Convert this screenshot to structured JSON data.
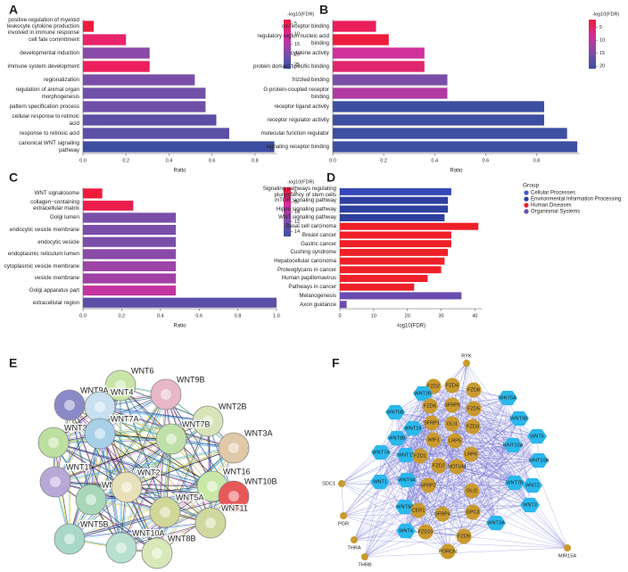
{
  "chart_data": [
    {
      "panel": "A",
      "type": "bar",
      "orientation": "horizontal",
      "categories": [
        "positive regulation of myeloid leukocyte cytokine production involved in immune response",
        "cell fate commitment",
        "developmental induction",
        "immune system development",
        "regionalization",
        "regulation of animal organ morphogenesis",
        "pattern specification process",
        "cellular response to retinoic acid",
        "response to retinoic acid",
        "canonical WNT signaling pathway"
      ],
      "values": [
        0.05,
        0.2,
        0.31,
        0.31,
        0.52,
        0.57,
        0.57,
        0.62,
        0.68,
        0.89
      ],
      "colors": [
        "#ee1c3c",
        "#e8246a",
        "#8a4aa8",
        "#ec1f5c",
        "#7a4ea8",
        "#6f50a8",
        "#6f50a8",
        "#5b4fa6",
        "#5b4fa6",
        "#3e4fa1"
      ],
      "xlabel": "Ratio",
      "xlim": [
        0,
        0.9
      ],
      "xticks": [
        {
          "value": 0,
          "label": "0.0"
        },
        0.2,
        0.4,
        0.6,
        0.8
      ],
      "colorbar": {
        "title": "-log10(FDR)",
        "lim": [
          3,
          27
        ],
        "ticks": [
          5,
          10,
          15,
          20,
          25
        ]
      }
    },
    {
      "panel": "B",
      "type": "bar",
      "orientation": "horizontal",
      "categories": [
        "co-receptor binding",
        "regulatory region nucleic acid binding",
        "cytokine activity",
        "protein domain specific binding",
        "frizzled binding",
        "G protein-coupled receptor binding",
        "receptor ligand activity",
        "receptor regulator activity",
        "molecular function regulator",
        "signaling receptor binding"
      ],
      "values": [
        0.17,
        0.22,
        0.36,
        0.36,
        0.45,
        0.45,
        0.83,
        0.83,
        0.92,
        0.96
      ],
      "colors": [
        "#ea1f5a",
        "#ee1c3c",
        "#d0309c",
        "#e0266e",
        "#7a4ea8",
        "#b03aa0",
        "#3e4fa1",
        "#3e4fa1",
        "#3e4fa1",
        "#3e4fa1"
      ],
      "xlabel": "Ratio",
      "xlim": [
        0,
        0.97
      ],
      "xticks": [
        {
          "value": 0,
          "label": "0.0"
        },
        0.2,
        0.4,
        0.6,
        0.8
      ],
      "colorbar": {
        "title": "-log10(FDR)",
        "lim": [
          2,
          21
        ],
        "ticks": [
          5,
          10,
          15,
          20
        ]
      }
    },
    {
      "panel": "C",
      "type": "bar",
      "orientation": "horizontal",
      "categories": [
        "WNT signalosome",
        "collagen−containing extracellular matrix",
        "Golgi lumen",
        "endocytic vesicle membrane",
        "endocytic vesicle",
        "endoplasmic reticulum lumen",
        "cytoplasmic vesicle membrane",
        "vesicle membrane",
        "Golgi apparatus part",
        "extracellular region"
      ],
      "values": [
        0.1,
        0.26,
        0.48,
        0.48,
        0.48,
        0.48,
        0.48,
        0.48,
        0.48,
        1.0
      ],
      "colors": [
        "#ee1c3c",
        "#ec1f4c",
        "#7a4ea8",
        "#7a4ea8",
        "#7a4ea8",
        "#8a4aa8",
        "#9c44a6",
        "#a040a4",
        "#c4349e",
        "#5b4fa6"
      ],
      "xlabel": "Ratio",
      "xlim": [
        0,
        1.0
      ],
      "xticks": [
        {
          "value": 0,
          "label": "0.0"
        },
        0.2,
        0.4,
        0.6,
        0.8,
        {
          "value": 1.0,
          "label": "1.0"
        }
      ],
      "colorbar": {
        "title": "-log10(FDR)",
        "lim": [
          5,
          15
        ],
        "ticks": [
          6,
          8,
          10,
          12,
          14
        ]
      }
    },
    {
      "panel": "D",
      "type": "bar",
      "orientation": "horizontal",
      "categories": [
        "Signaling pathways regulating pluripotency of stem cells",
        "mTOR signaling pathway",
        "Hippo signaling pathway",
        "WNT signaling pathway",
        "Basal cell carcinoma",
        "Breast cancer",
        "Gastric cancer",
        "Cushing syndrome",
        "Hepatocellular carcinoma",
        "Proteoglycans in cancer",
        "Human papillomavirus",
        "Pathways in cancer",
        "Melanogenesis",
        "Axon guidance"
      ],
      "values": [
        33,
        32,
        32,
        31,
        41,
        33,
        33,
        32,
        31,
        30,
        26,
        22,
        36,
        2
      ],
      "colors": [
        "#3648b8",
        "#2f3f9e",
        "#2f3f9e",
        "#2f3f9e",
        "#ee2028",
        "#ee2028",
        "#ee2028",
        "#ee2028",
        "#ee2028",
        "#ee2028",
        "#ee2028",
        "#ee2028",
        "#6a4cb0",
        "#6a4cb0"
      ],
      "xlabel": "-log10(FDR)",
      "xlim": [
        0,
        42
      ],
      "xticks": [
        0,
        10,
        20,
        30,
        40
      ],
      "legend": {
        "title": "Group",
        "items": [
          {
            "name": "Cellular Processes",
            "color": "#3f5ad0"
          },
          {
            "name": "Environmental Information Processing",
            "color": "#2f3f9e"
          },
          {
            "name": "Human Diseases",
            "color": "#ee2028"
          },
          {
            "name": "Organismal Systems",
            "color": "#6a4cb0"
          }
        ]
      }
    }
  ],
  "networks": [
    {
      "panel": "E",
      "nodes": [
        "WNT6",
        "WNT9B",
        "WNT9A",
        "WNT4",
        "WNT2B",
        "WNT3",
        "WNT7A",
        "WNT7B",
        "WNT3A",
        "WNT1",
        "WNT16",
        "WNT10B",
        "WNT8A",
        "WNT2",
        "WNT5A",
        "WNT11",
        "WNT5B",
        "WNT10A",
        "WNT8B"
      ]
    },
    {
      "panel": "F",
      "node_colors": {
        "hexagon": "#2bb8ec",
        "circle": "#c99a2e"
      },
      "nodes": [
        {
          "label": "RYK",
          "shape": "circle"
        },
        {
          "label": "FZD2",
          "shape": "circle"
        },
        {
          "label": "FZD4",
          "shape": "circle"
        },
        {
          "label": "FZD8",
          "shape": "circle"
        },
        {
          "label": "WNT2B",
          "shape": "hexagon"
        },
        {
          "label": "WNT5A",
          "shape": "hexagon"
        },
        {
          "label": "FZD6",
          "shape": "circle"
        },
        {
          "label": "FZD5",
          "shape": "circle"
        },
        {
          "label": "WNT5B",
          "shape": "hexagon"
        },
        {
          "label": "SFRP5",
          "shape": "circle"
        },
        {
          "label": "WNT9B",
          "shape": "hexagon"
        },
        {
          "label": "WNT8B",
          "shape": "hexagon"
        },
        {
          "label": "WNT16",
          "shape": "hexagon"
        },
        {
          "label": "SFRP1",
          "shape": "circle"
        },
        {
          "label": "GLI1",
          "shape": "circle"
        },
        {
          "label": "FZD3",
          "shape": "circle"
        },
        {
          "label": "WNT6",
          "shape": "hexagon"
        },
        {
          "label": "WIF1",
          "shape": "circle"
        },
        {
          "label": "LRP5",
          "shape": "circle"
        },
        {
          "label": "WNT10A",
          "shape": "hexagon"
        },
        {
          "label": "WNT7A",
          "shape": "hexagon"
        },
        {
          "label": "WNT11",
          "shape": "hexagon"
        },
        {
          "label": "FZD1",
          "shape": "circle"
        },
        {
          "label": "LRP6",
          "shape": "circle"
        },
        {
          "label": "WNT10B",
          "shape": "hexagon"
        },
        {
          "label": "FZD7",
          "shape": "circle"
        },
        {
          "label": "NOTUM",
          "shape": "circle"
        },
        {
          "label": "SDC1",
          "shape": "circle"
        },
        {
          "label": "WNT1",
          "shape": "hexagon"
        },
        {
          "label": "WNT9A",
          "shape": "hexagon"
        },
        {
          "label": "SFRP2",
          "shape": "circle"
        },
        {
          "label": "GLI2",
          "shape": "circle"
        },
        {
          "label": "WNT7B",
          "shape": "hexagon"
        },
        {
          "label": "WNT2",
          "shape": "hexagon"
        },
        {
          "label": "WNT8A",
          "shape": "hexagon"
        },
        {
          "label": "CER1",
          "shape": "circle"
        },
        {
          "label": "SFRP4",
          "shape": "circle"
        },
        {
          "label": "GPC3",
          "shape": "circle"
        },
        {
          "label": "WNT3",
          "shape": "hexagon"
        },
        {
          "label": "PGR",
          "shape": "circle"
        },
        {
          "label": "WNT4",
          "shape": "hexagon"
        },
        {
          "label": "FZD10",
          "shape": "circle"
        },
        {
          "label": "FZD9",
          "shape": "circle"
        },
        {
          "label": "WNT3A",
          "shape": "hexagon"
        },
        {
          "label": "THRA",
          "shape": "circle"
        },
        {
          "label": "PORCN",
          "shape": "circle"
        },
        {
          "label": "MIR15A",
          "shape": "circle"
        },
        {
          "label": "THRB",
          "shape": "circle"
        }
      ]
    }
  ]
}
